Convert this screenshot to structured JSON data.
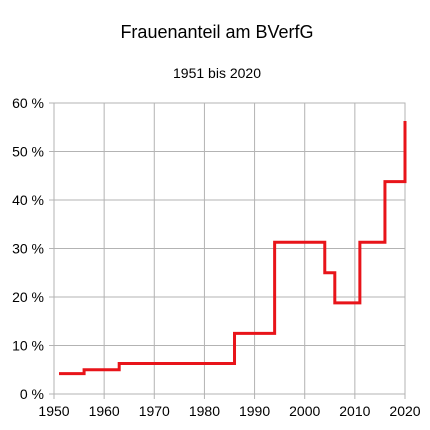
{
  "chart_data": {
    "type": "line",
    "step": true,
    "title": "Frauenanteil am BVerfG",
    "subtitle": "1951 bis 2020",
    "xlabel": "",
    "ylabel": "",
    "xlim": [
      1950,
      2020
    ],
    "ylim": [
      0,
      60
    ],
    "xticks": [
      1950,
      1960,
      1970,
      1980,
      1990,
      2000,
      2010,
      2020
    ],
    "xtick_labels": [
      "1950",
      "1960",
      "1970",
      "1980",
      "1990",
      "2000",
      "2010",
      "2020"
    ],
    "yticks": [
      0,
      10,
      20,
      30,
      40,
      50,
      60
    ],
    "ytick_labels": [
      "0 %",
      "10 %",
      "20 %",
      "30 %",
      "40 %",
      "50 %",
      "60 %"
    ],
    "grid": true,
    "legend": "none",
    "series": [
      {
        "color": "#e8141a",
        "points": [
          [
            1951,
            4.2
          ],
          [
            1956,
            4.2
          ],
          [
            1956,
            5.0
          ],
          [
            1963,
            5.0
          ],
          [
            1963,
            6.3
          ],
          [
            1986,
            6.3
          ],
          [
            1986,
            12.5
          ],
          [
            1994,
            12.5
          ],
          [
            1994,
            31.3
          ],
          [
            2004,
            31.3
          ],
          [
            2004,
            25.0
          ],
          [
            2006,
            25.0
          ],
          [
            2006,
            18.8
          ],
          [
            2011,
            18.8
          ],
          [
            2011,
            31.3
          ],
          [
            2016,
            31.3
          ],
          [
            2016,
            43.8
          ],
          [
            2020,
            43.8
          ],
          [
            2020,
            56.3
          ]
        ]
      }
    ]
  }
}
